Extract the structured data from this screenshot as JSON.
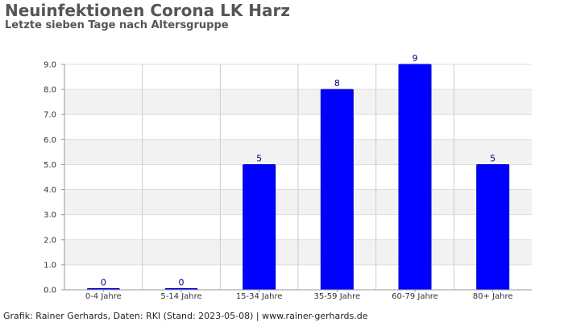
{
  "chart_data": {
    "type": "bar",
    "title": "Neuinfektionen Corona LK Harz",
    "subtitle": "Letzte sieben Tage nach Altersgruppe",
    "categories": [
      "0-4 Jahre",
      "5-14 Jahre",
      "15-34 Jahre",
      "35-59 Jahre",
      "60-79 Jahre",
      "80+ Jahre"
    ],
    "values": [
      0,
      0,
      5,
      8,
      9,
      5
    ],
    "data_labels": [
      "0",
      "0",
      "5",
      "8",
      "9",
      "5"
    ],
    "ylim": [
      0,
      9
    ],
    "yticks": [
      "0.0",
      "1.0",
      "2.0",
      "3.0",
      "4.0",
      "5.0",
      "6.0",
      "7.0",
      "8.0",
      "9.0"
    ],
    "xlabel": "",
    "ylabel": "",
    "grid": true,
    "bar_color": "#0000ff",
    "band_color": "#f2f2f2"
  },
  "footer": "Grafik: Rainer Gerhards, Daten: RKI (Stand: 2023-05-08) | www.rainer-gerhards.de"
}
